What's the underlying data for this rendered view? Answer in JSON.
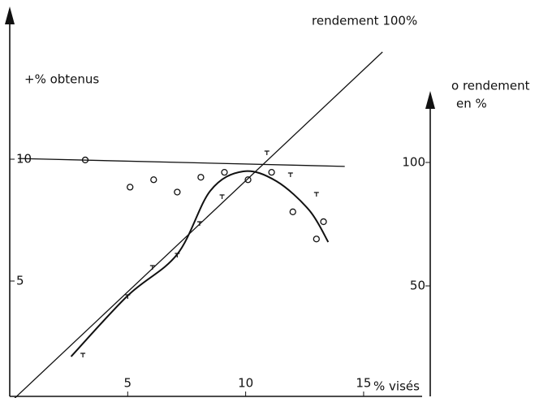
{
  "chart_data": {
    "type": "scatter",
    "y_label": "+% obtenus",
    "y2_label_line1": "o rendement",
    "y2_label_line2": "en %",
    "x_label": "% visés",
    "xlim": [
      0,
      16
    ],
    "xticks": [
      5,
      10,
      15
    ],
    "ylim": [
      0,
      16
    ],
    "yticks": [
      5,
      10
    ],
    "y2lim": [
      0,
      160
    ],
    "y2ticks": [
      50,
      100
    ],
    "series": [
      {
        "name": "rendement 100%",
        "mode": "line",
        "color": "#111",
        "x": [
          0,
          15.8
        ],
        "values": [
          0,
          14.4
        ]
      },
      {
        "mode": "markers",
        "marker": "cross",
        "color": "#111",
        "x": [
          3.1,
          5.0,
          6.05,
          7.1,
          8.05,
          9.0,
          10.9,
          11.9,
          13.0
        ],
        "values": [
          2.0,
          4.4,
          5.6,
          6.1,
          7.4,
          8.5,
          10.3,
          9.4,
          8.6
        ]
      },
      {
        "mode": "line",
        "color": "#111",
        "x": [
          2.6,
          5.0,
          7.1,
          8.5,
          9.9,
          11.3,
          12.7,
          13.5
        ],
        "values": [
          1.9,
          4.4,
          6.1,
          8.7,
          9.5,
          9.1,
          7.9,
          6.6
        ]
      },
      {
        "mode": "markers",
        "marker": "circle",
        "axis": "y2",
        "color": "#111",
        "x": [
          3.2,
          5.1,
          6.1,
          7.1,
          8.1,
          9.1,
          10.1,
          11.1,
          12.0,
          13.0,
          13.3
        ],
        "values": [
          101,
          90,
          93,
          88,
          94,
          96,
          93,
          96,
          80,
          69,
          76
        ]
      },
      {
        "mode": "line",
        "axis": "y2",
        "color": "#111",
        "x": [
          0.35,
          14.2
        ],
        "values": [
          101.6,
          98.4
        ]
      }
    ]
  }
}
